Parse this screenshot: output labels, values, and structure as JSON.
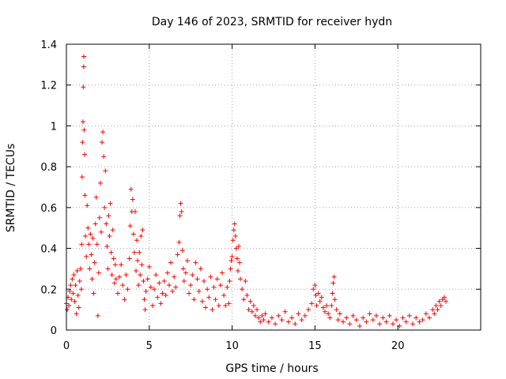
{
  "chart_data": {
    "type": "scatter",
    "title": "Day 146 of 2023, SRMTID for receiver hydn",
    "xlabel": "GPS time / hours",
    "ylabel": "SRMTID / TECUs",
    "xlim": [
      0,
      25
    ],
    "ylim": [
      0,
      1.4
    ],
    "xticks": [
      0,
      5,
      10,
      15,
      20
    ],
    "xtick_labels": [
      "0",
      "5",
      "10",
      "15",
      "20"
    ],
    "yticks": [
      0,
      0.2,
      0.4,
      0.6,
      0.8,
      1.0,
      1.2,
      1.4
    ],
    "ytick_labels": [
      "0",
      "0.2",
      "0.4",
      "0.6",
      "0.8",
      "1",
      "1.2",
      "1.4"
    ],
    "grid": true,
    "marker": "+",
    "color": "#ff0000",
    "series": [
      {
        "name": "SRMTID",
        "points": [
          [
            0.0,
            0.13
          ],
          [
            0.05,
            0.1
          ],
          [
            0.1,
            0.16
          ],
          [
            0.15,
            0.12
          ],
          [
            0.2,
            0.19
          ],
          [
            0.25,
            0.22
          ],
          [
            0.3,
            0.15
          ],
          [
            0.35,
            0.25
          ],
          [
            0.4,
            0.18
          ],
          [
            0.45,
            0.27
          ],
          [
            0.5,
            0.14
          ],
          [
            0.55,
            0.22
          ],
          [
            0.6,
            0.08
          ],
          [
            0.65,
            0.29
          ],
          [
            0.7,
            0.17
          ],
          [
            0.75,
            0.11
          ],
          [
            0.8,
            0.24
          ],
          [
            0.85,
            0.3
          ],
          [
            0.9,
            0.2
          ],
          [
            0.92,
            0.42
          ],
          [
            0.95,
            0.75
          ],
          [
            0.97,
            0.92
          ],
          [
            1.0,
            1.02
          ],
          [
            1.02,
            1.19
          ],
          [
            1.04,
            1.29
          ],
          [
            1.05,
            1.34
          ],
          [
            1.07,
            0.98
          ],
          [
            1.1,
            0.86
          ],
          [
            1.12,
            0.66
          ],
          [
            1.15,
            0.46
          ],
          [
            1.2,
            0.36
          ],
          [
            1.25,
            0.61
          ],
          [
            1.3,
            0.5
          ],
          [
            1.35,
            0.42
          ],
          [
            1.4,
            0.3
          ],
          [
            1.45,
            0.47
          ],
          [
            1.5,
            0.37
          ],
          [
            1.55,
            0.25
          ],
          [
            1.6,
            0.45
          ],
          [
            1.65,
            0.18
          ],
          [
            1.7,
            0.33
          ],
          [
            1.75,
            0.52
          ],
          [
            1.8,
            0.65
          ],
          [
            1.85,
            0.42
          ],
          [
            1.9,
            0.07
          ],
          [
            1.95,
            0.28
          ],
          [
            2.0,
            0.55
          ],
          [
            2.05,
            0.72
          ],
          [
            2.1,
            0.48
          ],
          [
            2.15,
            0.92
          ],
          [
            2.2,
            0.97
          ],
          [
            2.25,
            0.85
          ],
          [
            2.3,
            0.6
          ],
          [
            2.35,
            0.78
          ],
          [
            2.4,
            0.52
          ],
          [
            2.45,
            0.41
          ],
          [
            2.5,
            0.3
          ],
          [
            2.55,
            0.56
          ],
          [
            2.6,
            0.46
          ],
          [
            2.65,
            0.62
          ],
          [
            2.7,
            0.38
          ],
          [
            2.75,
            0.27
          ],
          [
            2.8,
            0.49
          ],
          [
            2.85,
            0.35
          ],
          [
            2.9,
            0.23
          ],
          [
            2.95,
            0.32
          ],
          [
            3.0,
            0.25
          ],
          [
            3.1,
            0.18
          ],
          [
            3.2,
            0.26
          ],
          [
            3.3,
            0.32
          ],
          [
            3.4,
            0.22
          ],
          [
            3.5,
            0.15
          ],
          [
            3.6,
            0.27
          ],
          [
            3.7,
            0.2
          ],
          [
            3.8,
            0.35
          ],
          [
            3.85,
            0.51
          ],
          [
            3.9,
            0.69
          ],
          [
            3.95,
            0.58
          ],
          [
            4.0,
            0.64
          ],
          [
            4.05,
            0.47
          ],
          [
            4.1,
            0.38
          ],
          [
            4.15,
            0.58
          ],
          [
            4.2,
            0.29
          ],
          [
            4.25,
            0.44
          ],
          [
            4.3,
            0.34
          ],
          [
            4.35,
            0.22
          ],
          [
            4.4,
            0.38
          ],
          [
            4.45,
            0.27
          ],
          [
            4.5,
            0.46
          ],
          [
            4.55,
            0.32
          ],
          [
            4.6,
            0.49
          ],
          [
            4.65,
            0.24
          ],
          [
            4.7,
            0.15
          ],
          [
            4.75,
            0.1
          ],
          [
            4.8,
            0.19
          ],
          [
            4.9,
            0.25
          ],
          [
            5.0,
            0.31
          ],
          [
            5.1,
            0.21
          ],
          [
            5.2,
            0.12
          ],
          [
            5.3,
            0.2
          ],
          [
            5.4,
            0.27
          ],
          [
            5.5,
            0.16
          ],
          [
            5.6,
            0.23
          ],
          [
            5.7,
            0.13
          ],
          [
            5.8,
            0.18
          ],
          [
            5.9,
            0.24
          ],
          [
            6.0,
            0.17
          ],
          [
            6.1,
            0.28
          ],
          [
            6.2,
            0.22
          ],
          [
            6.3,
            0.33
          ],
          [
            6.4,
            0.19
          ],
          [
            6.5,
            0.26
          ],
          [
            6.6,
            0.21
          ],
          [
            6.7,
            0.37
          ],
          [
            6.8,
            0.43
          ],
          [
            6.85,
            0.56
          ],
          [
            6.9,
            0.62
          ],
          [
            6.95,
            0.58
          ],
          [
            7.0,
            0.39
          ],
          [
            7.05,
            0.3
          ],
          [
            7.1,
            0.24
          ],
          [
            7.2,
            0.28
          ],
          [
            7.3,
            0.34
          ],
          [
            7.4,
            0.18
          ],
          [
            7.5,
            0.22
          ],
          [
            7.6,
            0.27
          ],
          [
            7.7,
            0.15
          ],
          [
            7.8,
            0.33
          ],
          [
            7.9,
            0.25
          ],
          [
            8.0,
            0.19
          ],
          [
            8.1,
            0.3
          ],
          [
            8.2,
            0.14
          ],
          [
            8.3,
            0.24
          ],
          [
            8.4,
            0.11
          ],
          [
            8.5,
            0.2
          ],
          [
            8.6,
            0.16
          ],
          [
            8.7,
            0.26
          ],
          [
            8.8,
            0.1
          ],
          [
            8.9,
            0.21
          ],
          [
            9.0,
            0.15
          ],
          [
            9.1,
            0.25
          ],
          [
            9.2,
            0.12
          ],
          [
            9.3,
            0.22
          ],
          [
            9.4,
            0.28
          ],
          [
            9.5,
            0.17
          ],
          [
            9.6,
            0.12
          ],
          [
            9.7,
            0.21
          ],
          [
            9.8,
            0.13
          ],
          [
            9.85,
            0.24
          ],
          [
            9.9,
            0.3
          ],
          [
            9.95,
            0.34
          ],
          [
            10.0,
            0.36
          ],
          [
            10.05,
            0.44
          ],
          [
            10.1,
            0.49
          ],
          [
            10.15,
            0.52
          ],
          [
            10.2,
            0.46
          ],
          [
            10.25,
            0.4
          ],
          [
            10.3,
            0.35
          ],
          [
            10.35,
            0.29
          ],
          [
            10.4,
            0.41
          ],
          [
            10.45,
            0.33
          ],
          [
            10.5,
            0.25
          ],
          [
            10.6,
            0.2
          ],
          [
            10.7,
            0.15
          ],
          [
            10.8,
            0.24
          ],
          [
            10.9,
            0.17
          ],
          [
            11.0,
            0.1
          ],
          [
            11.1,
            0.14
          ],
          [
            11.2,
            0.09
          ],
          [
            11.3,
            0.12
          ],
          [
            11.4,
            0.07
          ],
          [
            11.5,
            0.1
          ],
          [
            11.6,
            0.06
          ],
          [
            11.7,
            0.04
          ],
          [
            11.8,
            0.07
          ],
          [
            11.9,
            0.05
          ],
          [
            12.0,
            0.08
          ],
          [
            12.2,
            0.04
          ],
          [
            12.4,
            0.06
          ],
          [
            12.6,
            0.03
          ],
          [
            12.8,
            0.07
          ],
          [
            13.0,
            0.05
          ],
          [
            13.2,
            0.09
          ],
          [
            13.4,
            0.04
          ],
          [
            13.6,
            0.06
          ],
          [
            13.8,
            0.03
          ],
          [
            14.0,
            0.08
          ],
          [
            14.2,
            0.05
          ],
          [
            14.4,
            0.07
          ],
          [
            14.6,
            0.1
          ],
          [
            14.8,
            0.13
          ],
          [
            14.9,
            0.2
          ],
          [
            15.0,
            0.22
          ],
          [
            15.05,
            0.17
          ],
          [
            15.1,
            0.12
          ],
          [
            15.2,
            0.18
          ],
          [
            15.3,
            0.14
          ],
          [
            15.4,
            0.16
          ],
          [
            15.5,
            0.11
          ],
          [
            15.6,
            0.09
          ],
          [
            15.7,
            0.12
          ],
          [
            15.8,
            0.08
          ],
          [
            15.9,
            0.06
          ],
          [
            16.0,
            0.12
          ],
          [
            16.05,
            0.18
          ],
          [
            16.1,
            0.23
          ],
          [
            16.15,
            0.26
          ],
          [
            16.2,
            0.15
          ],
          [
            16.3,
            0.1
          ],
          [
            16.4,
            0.05
          ],
          [
            16.5,
            0.08
          ],
          [
            16.7,
            0.04
          ],
          [
            16.9,
            0.06
          ],
          [
            17.1,
            0.03
          ],
          [
            17.3,
            0.07
          ],
          [
            17.5,
            0.05
          ],
          [
            17.7,
            0.02
          ],
          [
            17.9,
            0.06
          ],
          [
            18.1,
            0.04
          ],
          [
            18.3,
            0.08
          ],
          [
            18.5,
            0.05
          ],
          [
            18.7,
            0.07
          ],
          [
            18.9,
            0.03
          ],
          [
            19.1,
            0.06
          ],
          [
            19.3,
            0.04
          ],
          [
            19.5,
            0.07
          ],
          [
            19.7,
            0.03
          ],
          [
            19.9,
            0.05
          ],
          [
            20.1,
            0.02
          ],
          [
            20.3,
            0.06
          ],
          [
            20.5,
            0.04
          ],
          [
            20.7,
            0.07
          ],
          [
            20.9,
            0.03
          ],
          [
            21.1,
            0.06
          ],
          [
            21.3,
            0.04
          ],
          [
            21.5,
            0.05
          ],
          [
            21.7,
            0.08
          ],
          [
            21.9,
            0.06
          ],
          [
            22.1,
            0.1
          ],
          [
            22.2,
            0.08
          ],
          [
            22.3,
            0.12
          ],
          [
            22.4,
            0.1
          ],
          [
            22.5,
            0.14
          ],
          [
            22.6,
            0.12
          ],
          [
            22.7,
            0.15
          ],
          [
            22.8,
            0.16
          ],
          [
            22.9,
            0.14
          ]
        ]
      }
    ]
  }
}
